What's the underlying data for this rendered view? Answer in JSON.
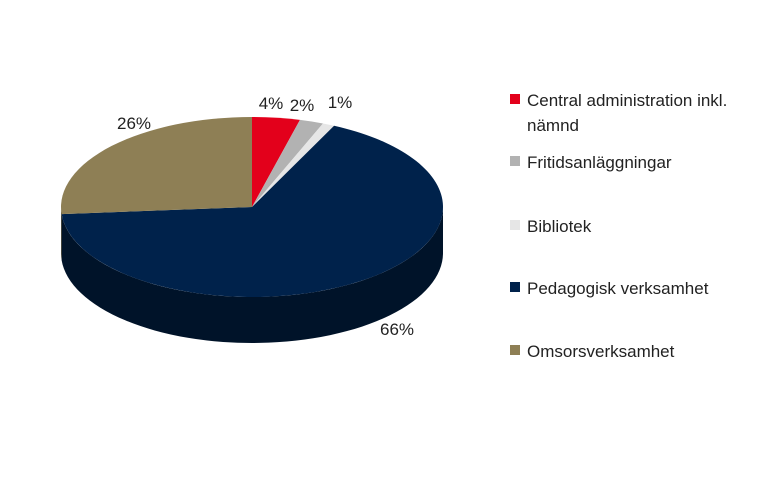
{
  "chart_data": {
    "type": "pie",
    "title": "",
    "slices": [
      {
        "name": "Central administration inkl. nämnd",
        "value": 4,
        "label": "4%",
        "color": "#e3001b"
      },
      {
        "name": "Fritidsanläggningar",
        "value": 2,
        "label": "2%",
        "color": "#b2b2b2"
      },
      {
        "name": "Bibliotek",
        "value": 1,
        "label": "1%",
        "color": "#e6e6e6"
      },
      {
        "name": "Pedagogisk verksamhet",
        "value": 66,
        "label": "66%",
        "color": "#00224b"
      },
      {
        "name": "Omsorsverksamhet",
        "value": 26,
        "label": "26%",
        "color": "#8e7f55"
      }
    ],
    "legend_position": "right",
    "three_d": true
  }
}
